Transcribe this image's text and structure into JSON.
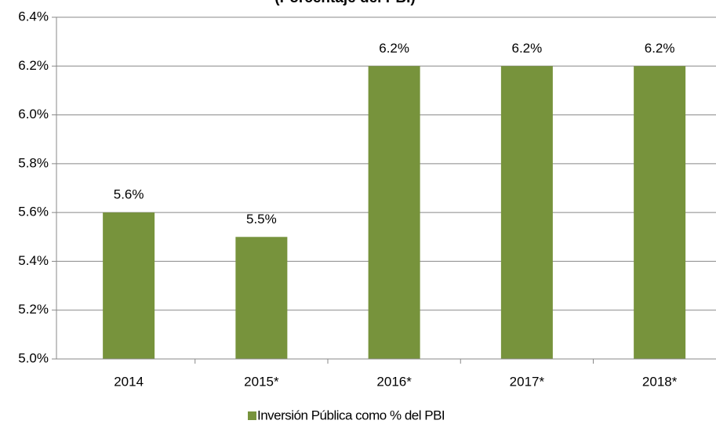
{
  "chart_data": {
    "type": "bar",
    "title": "(Porcentaje del PBI)",
    "categories": [
      "2014",
      "2015*",
      "2016*",
      "2017*",
      "2018*"
    ],
    "series": [
      {
        "name": "Inversión Pública como % del PBI",
        "color": "#77933c",
        "values": [
          5.6,
          5.5,
          6.2,
          6.2,
          6.2
        ],
        "value_labels": [
          "5.6%",
          "5.5%",
          "6.2%",
          "6.2%",
          "6.2%"
        ]
      }
    ],
    "ylim": [
      5.0,
      6.4
    ],
    "yticks": [
      {
        "value": 5.0,
        "label": "5.0%"
      },
      {
        "value": 5.2,
        "label": "5.2%"
      },
      {
        "value": 5.4,
        "label": "5.4%"
      },
      {
        "value": 5.6,
        "label": "5.6%"
      },
      {
        "value": 5.8,
        "label": "5.8%"
      },
      {
        "value": 6.0,
        "label": "6.0%"
      },
      {
        "value": 6.2,
        "label": "6.2%"
      },
      {
        "value": 6.4,
        "label": "6.4%"
      }
    ],
    "grid": true,
    "legend": "bottom"
  }
}
